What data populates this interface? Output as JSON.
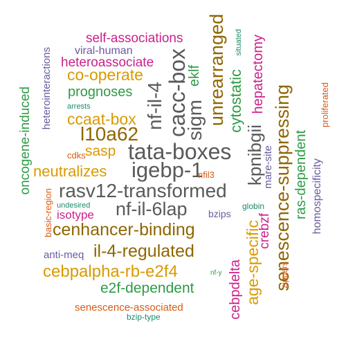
{
  "words": [
    {
      "text": "self-associations",
      "color": "#cc1f8a"
    },
    {
      "text": "viral-human",
      "color": "#6a5a9e"
    },
    {
      "text": "heteroassociate",
      "color": "#cc1f8a"
    },
    {
      "text": "co-operate",
      "color": "#d99a00"
    },
    {
      "text": "prognoses",
      "color": "#2e9a46"
    },
    {
      "text": "arrests",
      "color": "#1b8a6b"
    },
    {
      "text": "ccaat-box",
      "color": "#d99a00"
    },
    {
      "text": "l10a62",
      "color": "#8f6600"
    },
    {
      "text": "cdks",
      "color": "#d95a12"
    },
    {
      "text": "sasp",
      "color": "#d99a00"
    },
    {
      "text": "tata-boxes",
      "color": "#595959"
    },
    {
      "text": "igebp-1",
      "color": "#595959"
    },
    {
      "text": "neutralizes",
      "color": "#d99a00"
    },
    {
      "text": "rasv12-transformed",
      "color": "#595959"
    },
    {
      "text": "nf-il-6lap",
      "color": "#595959"
    },
    {
      "text": "basic-region",
      "color": "#d95a12"
    },
    {
      "text": "undesired",
      "color": "#1b8a6b"
    },
    {
      "text": "isotype",
      "color": "#cc1f8a"
    },
    {
      "text": "bzips",
      "color": "#6a5a9e"
    },
    {
      "text": "globin",
      "color": "#1b8a6b"
    },
    {
      "text": "cenhancer-binding",
      "color": "#8f6600"
    },
    {
      "text": "anti-meq",
      "color": "#6a5a9e"
    },
    {
      "text": "il-4-regulated",
      "color": "#8f6600"
    },
    {
      "text": "cebpalpha-rb-e2f4",
      "color": "#d99a00"
    },
    {
      "text": "nf-y",
      "color": "#2e9a46"
    },
    {
      "text": "e2f-dependent",
      "color": "#2e9a46"
    },
    {
      "text": "senescence-associated",
      "color": "#d95a12"
    },
    {
      "text": "bzip-type",
      "color": "#1b8a6b"
    },
    {
      "text": "nfil3",
      "color": "#d95a12"
    },
    {
      "text": "oncogene-induced",
      "color": "#2e9a46"
    },
    {
      "text": "heterointeractions",
      "color": "#6a5a9e"
    },
    {
      "text": "nf-il-4",
      "color": "#595959"
    },
    {
      "text": "cacc-box",
      "color": "#595959"
    },
    {
      "text": "sigm",
      "color": "#595959"
    },
    {
      "text": "eklf",
      "color": "#2e9a46"
    },
    {
      "text": "unrearranged",
      "color": "#8f6600"
    },
    {
      "text": "situated",
      "color": "#1b8a6b"
    },
    {
      "text": "cytostatic",
      "color": "#2e9a46"
    },
    {
      "text": "kpnibgii",
      "color": "#595959"
    },
    {
      "text": "hepatectomy",
      "color": "#cc1f8a"
    },
    {
      "text": "mare-site",
      "color": "#6a5a9e"
    },
    {
      "text": "senescence-suppressing",
      "color": "#8f6600"
    },
    {
      "text": "ras-dependent",
      "color": "#2e9a46"
    },
    {
      "text": "proliferated",
      "color": "#d95a12"
    },
    {
      "text": "homospecificity",
      "color": "#6a5a9e"
    },
    {
      "text": "crebzf",
      "color": "#cc1f8a"
    },
    {
      "text": "age-specific",
      "color": "#d99a00"
    },
    {
      "text": "cebpdelta",
      "color": "#cc1f8a"
    },
    {
      "text": "zippers",
      "color": "#d95a12"
    }
  ]
}
